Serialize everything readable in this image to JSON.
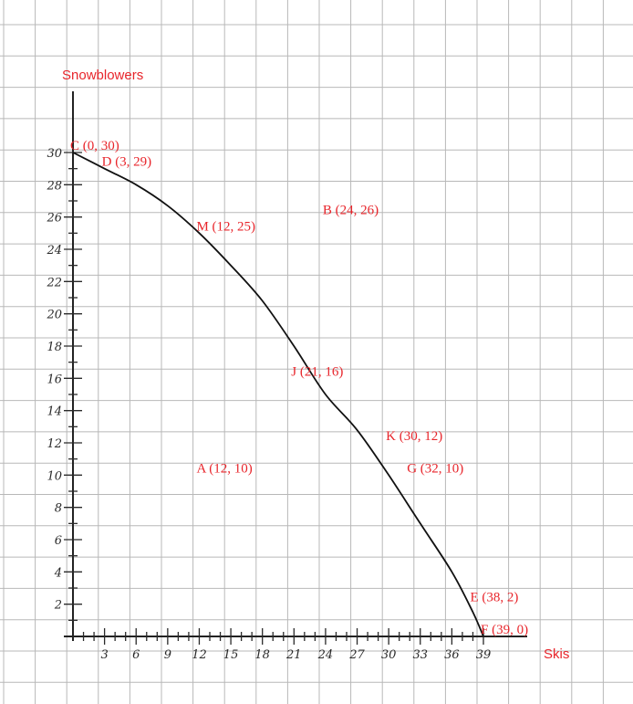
{
  "chart_data": {
    "type": "line",
    "title": "",
    "xlabel": "Skis",
    "ylabel": "Snowblowers",
    "xlim": [
      0,
      39
    ],
    "ylim": [
      0,
      30
    ],
    "grid": true,
    "x_ticks": [
      "3",
      "6",
      "9",
      "12",
      "15",
      "18",
      "21",
      "24",
      "27",
      "30",
      "33",
      "36",
      "39"
    ],
    "y_ticks": [
      "2",
      "4",
      "6",
      "8",
      "10",
      "12",
      "14",
      "16",
      "18",
      "20",
      "22",
      "24",
      "26",
      "28",
      "30"
    ],
    "curve": [
      {
        "x": 0,
        "y": 30
      },
      {
        "x": 3,
        "y": 29
      },
      {
        "x": 6,
        "y": 28
      },
      {
        "x": 9,
        "y": 26.7
      },
      {
        "x": 12,
        "y": 25
      },
      {
        "x": 15,
        "y": 23
      },
      {
        "x": 18,
        "y": 20.8
      },
      {
        "x": 21,
        "y": 18
      },
      {
        "x": 24,
        "y": 15
      },
      {
        "x": 27,
        "y": 12.8
      },
      {
        "x": 30,
        "y": 10
      },
      {
        "x": 33,
        "y": 7
      },
      {
        "x": 36,
        "y": 4
      },
      {
        "x": 38,
        "y": 1.5
      },
      {
        "x": 39,
        "y": 0
      }
    ],
    "points": [
      {
        "label": "C (0, 30)",
        "x": 0,
        "y": 30
      },
      {
        "label": "D (3, 29)",
        "x": 3,
        "y": 29
      },
      {
        "label": "M (12, 25)",
        "x": 12,
        "y": 25
      },
      {
        "label": "B (24, 26)",
        "x": 24,
        "y": 26
      },
      {
        "label": "J (21, 16)",
        "x": 21,
        "y": 16
      },
      {
        "label": "K (30, 12)",
        "x": 30,
        "y": 12
      },
      {
        "label": "A (12, 10)",
        "x": 12,
        "y": 10
      },
      {
        "label": "G (32, 10)",
        "x": 32,
        "y": 10
      },
      {
        "label": "E (38, 2)",
        "x": 38,
        "y": 2
      },
      {
        "label": "F (39, 0)",
        "x": 39,
        "y": 0
      }
    ],
    "colors": {
      "labels": "#e8252b",
      "curve": "#111111",
      "axes": "#222222",
      "grid": "#b8b8b8",
      "ink": "#2a2a2a"
    }
  }
}
